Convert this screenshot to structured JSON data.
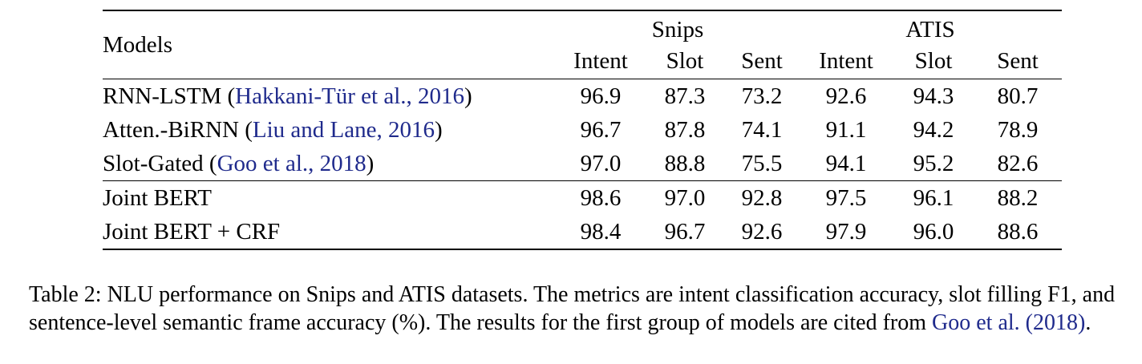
{
  "table": {
    "models_header": "Models",
    "groups": [
      {
        "label": "Snips",
        "columns": [
          "Intent",
          "Slot",
          "Sent"
        ]
      },
      {
        "label": "ATIS",
        "columns": [
          "Intent",
          "Slot",
          "Sent"
        ]
      }
    ],
    "rows": [
      {
        "model": "RNN-LSTM",
        "citation": "Hakkani-Tür et al., 2016",
        "values": [
          "96.9",
          "87.3",
          "73.2",
          "92.6",
          "94.3",
          "80.7"
        ],
        "bold": [
          false,
          false,
          false,
          false,
          false,
          false
        ]
      },
      {
        "model": "Atten.-BiRNN",
        "citation": "Liu and Lane, 2016",
        "values": [
          "96.7",
          "87.8",
          "74.1",
          "91.1",
          "94.2",
          "78.9"
        ],
        "bold": [
          false,
          false,
          false,
          false,
          false,
          false
        ]
      },
      {
        "model": "Slot-Gated",
        "citation": "Goo et al., 2018",
        "values": [
          "97.0",
          "88.8",
          "75.5",
          "94.1",
          "95.2",
          "82.6"
        ],
        "bold": [
          false,
          false,
          false,
          false,
          false,
          false
        ]
      },
      {
        "model": "Joint BERT",
        "citation": "",
        "values": [
          "98.6",
          "97.0",
          "92.8",
          "97.5",
          "96.1",
          "88.2"
        ],
        "bold": [
          true,
          true,
          true,
          false,
          true,
          false
        ]
      },
      {
        "model": "Joint BERT + CRF",
        "citation": "",
        "values": [
          "98.4",
          "96.7",
          "92.6",
          "97.9",
          "96.0",
          "88.6"
        ],
        "bold": [
          false,
          false,
          false,
          true,
          false,
          true
        ]
      }
    ]
  },
  "caption": {
    "text": "Table 2: NLU performance on Snips and ATIS datasets. The metrics are intent classification accuracy, slot filling F1, and sentence-level semantic frame accuracy (%). The results for the first group of models are cited from ",
    "citation": "Goo et al. (2018)",
    "end": "."
  }
}
